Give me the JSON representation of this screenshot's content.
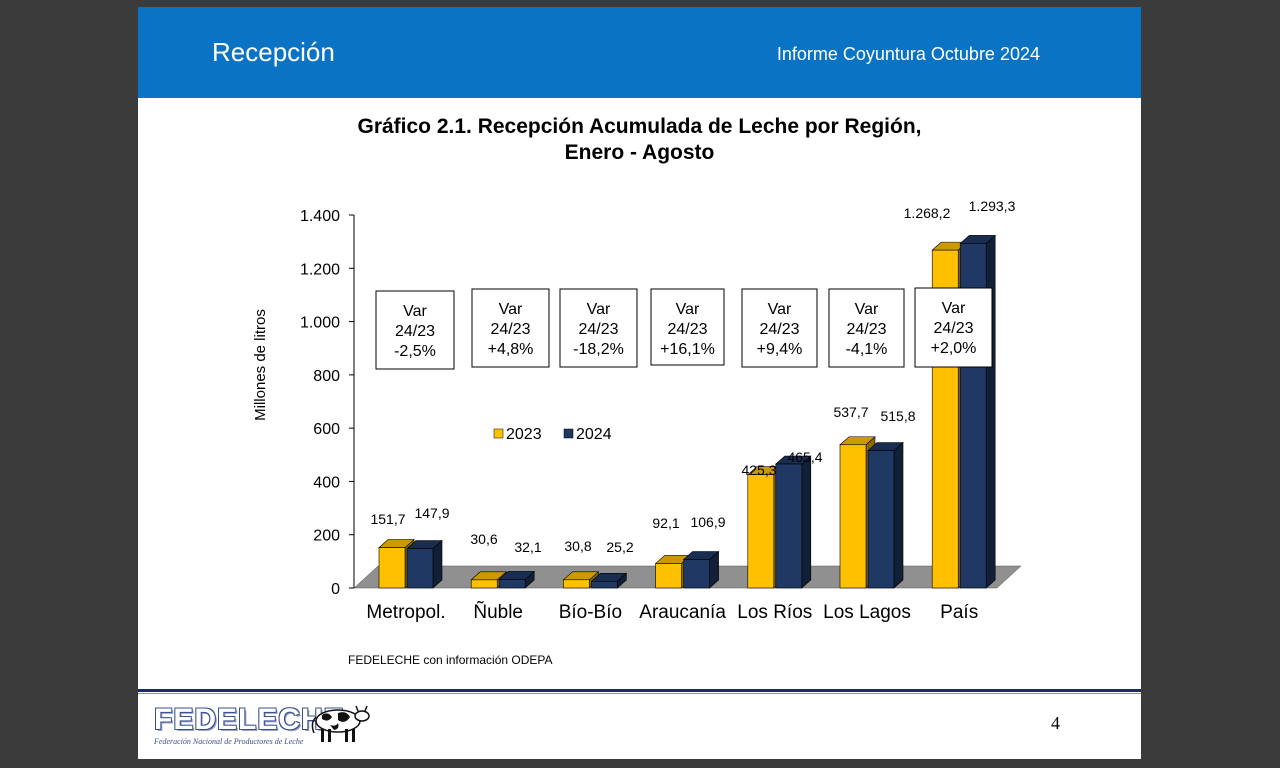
{
  "header": {
    "title": "Recepción",
    "report": "Informe Coyuntura Octubre 2024",
    "band_color": "#0b73c4"
  },
  "chart_title": {
    "line1": "Gráfico 2.1. Recepción Acumulada de Leche por Región,",
    "line2": "Enero - Agosto"
  },
  "chart_data": {
    "type": "bar",
    "title": "Gráfico 2.1. Recepción Acumulada de Leche por Región, Enero - Agosto",
    "categories": [
      "Metropol.",
      "Ñuble",
      "Bío-Bío",
      "Araucanía",
      "Los Ríos",
      "Los Lagos",
      "País"
    ],
    "series": [
      {
        "name": "2023",
        "color": "#ffc000",
        "values": [
          151.7,
          30.6,
          30.8,
          92.1,
          425.3,
          537.7,
          1268.2
        ],
        "labels": [
          "151,7",
          "30,6",
          "30,8",
          "92,1",
          "425,3",
          "537,7",
          "1.268,2"
        ]
      },
      {
        "name": "2024",
        "color": "#1f3864",
        "values": [
          147.9,
          32.1,
          25.2,
          106.9,
          465.4,
          515.8,
          1293.3
        ],
        "labels": [
          "147,9",
          "32,1",
          "25,2",
          "106,9",
          "465,4",
          "515,8",
          "1.293,3"
        ]
      }
    ],
    "ylabel": "Millones de litros",
    "xlabel": "",
    "ylim": [
      0,
      1400
    ],
    "yticks": [
      0,
      200,
      400,
      600,
      800,
      1000,
      1200,
      1400
    ],
    "ytick_labels": [
      "0",
      "200",
      "400",
      "600",
      "800",
      "1.000",
      "1.200",
      "1.400"
    ],
    "grid": false,
    "legend_position": "center",
    "variation_boxes": [
      {
        "line1": "Var",
        "line2": "24/23",
        "line3": "-2,5%"
      },
      {
        "line1": "Var",
        "line2": "24/23",
        "line3": "+4,8%"
      },
      {
        "line1": "Var",
        "line2": "24/23",
        "line3": "-18,2%"
      },
      {
        "line1": "Var",
        "line2": "24/23",
        "line3": "+16,1%"
      },
      {
        "line1": "Var",
        "line2": "24/23",
        "line3": "+9,4%"
      },
      {
        "line1": "Var",
        "line2": "24/23",
        "line3": "-4,1%"
      },
      {
        "line1": "Var",
        "line2": "24/23",
        "line3": "+2,0%"
      }
    ]
  },
  "source": "FEDELECHE con información ODEPA",
  "footer": {
    "logo_text": "FEDELECHE",
    "logo_sub": "Federación Nacional de Productores de Leche",
    "page_number": "4"
  }
}
